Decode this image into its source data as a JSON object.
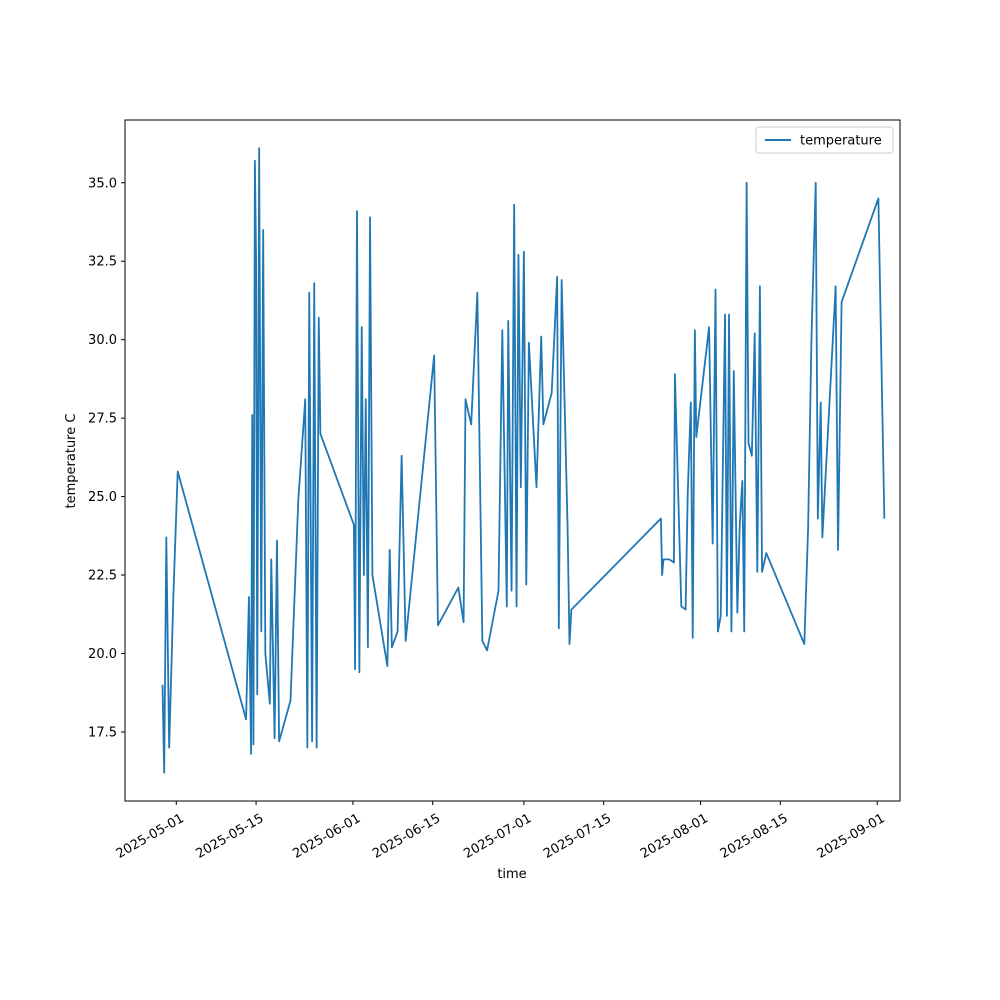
{
  "chart_data": {
    "type": "line",
    "xlabel": "time",
    "ylabel": "temperature C",
    "x_scale": "date",
    "xlim": [
      "2025-04-22",
      "2025-09-05"
    ],
    "ylim": [
      15.3,
      37.0
    ],
    "y_ticks": [
      17.5,
      20.0,
      22.5,
      25.0,
      27.5,
      30.0,
      32.5,
      35.0
    ],
    "y_tick_labels": [
      "17.5",
      "20.0",
      "22.5",
      "25.0",
      "27.5",
      "30.0",
      "32.5",
      "35.0"
    ],
    "x_ticks": [
      "2025-05-01",
      "2025-05-15",
      "2025-06-01",
      "2025-06-15",
      "2025-07-01",
      "2025-07-15",
      "2025-08-01",
      "2025-08-15",
      "2025-09-01"
    ],
    "grid": false,
    "legend": {
      "position": "top-right",
      "entries": [
        "temperature"
      ]
    },
    "series": [
      {
        "name": "temperature",
        "color": "#1f77b4",
        "points": [
          [
            "2025-04-28T14:00",
            19.0
          ],
          [
            "2025-04-28T21:00",
            16.2
          ],
          [
            "2025-04-29T06:00",
            23.7
          ],
          [
            "2025-04-29T18:00",
            17.0
          ],
          [
            "2025-04-30T12:00",
            21.9
          ],
          [
            "2025-05-01T06:00",
            25.8
          ],
          [
            "2025-05-13T06:00",
            17.9
          ],
          [
            "2025-05-13T18:00",
            21.8
          ],
          [
            "2025-05-14T03:00",
            16.8
          ],
          [
            "2025-05-14T08:00",
            27.6
          ],
          [
            "2025-05-14T13:00",
            17.1
          ],
          [
            "2025-05-14T19:00",
            35.7
          ],
          [
            "2025-05-15T00:00",
            32.6
          ],
          [
            "2025-05-15T05:00",
            18.7
          ],
          [
            "2025-05-15T13:00",
            36.1
          ],
          [
            "2025-05-15T22:00",
            20.7
          ],
          [
            "2025-05-16T06:00",
            33.5
          ],
          [
            "2025-05-16T15:00",
            20.0
          ],
          [
            "2025-05-17T10:00",
            18.4
          ],
          [
            "2025-05-17T16:00",
            23.0
          ],
          [
            "2025-05-18T06:00",
            17.3
          ],
          [
            "2025-05-18T16:00",
            23.6
          ],
          [
            "2025-05-19T01:00",
            17.2
          ],
          [
            "2025-05-21T01:00",
            18.5
          ],
          [
            "2025-05-22T10:00",
            24.9
          ],
          [
            "2025-05-23T15:00",
            28.1
          ],
          [
            "2025-05-24T00:00",
            17.0
          ],
          [
            "2025-05-24T08:00",
            31.5
          ],
          [
            "2025-05-24T20:00",
            17.2
          ],
          [
            "2025-05-25T05:00",
            31.8
          ],
          [
            "2025-05-25T15:00",
            17.0
          ],
          [
            "2025-05-26T00:00",
            30.7
          ],
          [
            "2025-05-26T07:00",
            27.0
          ],
          [
            "2025-06-01T04:00",
            24.1
          ],
          [
            "2025-06-01T09:00",
            19.5
          ],
          [
            "2025-06-01T17:00",
            34.1
          ],
          [
            "2025-06-02T03:00",
            19.4
          ],
          [
            "2025-06-02T13:00",
            30.4
          ],
          [
            "2025-06-02T22:00",
            22.5
          ],
          [
            "2025-06-03T06:00",
            28.1
          ],
          [
            "2025-06-03T15:00",
            20.2
          ],
          [
            "2025-06-04T00:00",
            33.9
          ],
          [
            "2025-06-04T10:00",
            22.5
          ],
          [
            "2025-06-07T01:00",
            19.6
          ],
          [
            "2025-06-07T11:00",
            23.3
          ],
          [
            "2025-06-07T20:00",
            20.2
          ],
          [
            "2025-06-08T20:00",
            20.7
          ],
          [
            "2025-06-09T13:00",
            26.3
          ],
          [
            "2025-06-10T06:00",
            20.4
          ],
          [
            "2025-06-15T06:00",
            29.5
          ],
          [
            "2025-06-15T22:00",
            20.9
          ],
          [
            "2025-06-19T12:00",
            22.1
          ],
          [
            "2025-06-20T10:00",
            21.0
          ],
          [
            "2025-06-20T18:00",
            28.1
          ],
          [
            "2025-06-21T18:00",
            27.3
          ],
          [
            "2025-06-22T20:00",
            31.5
          ],
          [
            "2025-06-23T17:00",
            20.4
          ],
          [
            "2025-06-24T13:00",
            20.1
          ],
          [
            "2025-06-26T13:00",
            22.0
          ],
          [
            "2025-06-27T05:00",
            30.3
          ],
          [
            "2025-06-28T00:00",
            21.5
          ],
          [
            "2025-06-28T06:00",
            30.6
          ],
          [
            "2025-06-28T20:00",
            22.0
          ],
          [
            "2025-06-29T07:00",
            34.3
          ],
          [
            "2025-06-29T17:00",
            21.5
          ],
          [
            "2025-06-30T01:00",
            32.7
          ],
          [
            "2025-06-30T11:00",
            25.3
          ],
          [
            "2025-07-01T00:00",
            32.8
          ],
          [
            "2025-07-01T10:00",
            22.2
          ],
          [
            "2025-07-01T21:00",
            29.9
          ],
          [
            "2025-07-03T05:00",
            25.3
          ],
          [
            "2025-07-04T01:00",
            30.1
          ],
          [
            "2025-07-04T10:00",
            27.3
          ],
          [
            "2025-07-05T21:00",
            28.3
          ],
          [
            "2025-07-06T20:00",
            32.0
          ],
          [
            "2025-07-07T03:00",
            20.8
          ],
          [
            "2025-07-07T15:00",
            31.9
          ],
          [
            "2025-07-08T16:00",
            24.0
          ],
          [
            "2025-07-09T00:00",
            20.3
          ],
          [
            "2025-07-09T08:00",
            21.4
          ],
          [
            "2025-07-25T01:00",
            24.3
          ],
          [
            "2025-07-25T06:00",
            22.5
          ],
          [
            "2025-07-25T12:00",
            23.0
          ],
          [
            "2025-07-26T12:00",
            23.0
          ],
          [
            "2025-07-27T08:00",
            22.9
          ],
          [
            "2025-07-27T12:00",
            28.9
          ],
          [
            "2025-07-28T15:00",
            21.5
          ],
          [
            "2025-07-29T09:00",
            21.4
          ],
          [
            "2025-07-29T18:00",
            25.1
          ],
          [
            "2025-07-30T07:00",
            28.0
          ],
          [
            "2025-07-30T15:00",
            20.5
          ],
          [
            "2025-07-31T00:00",
            30.3
          ],
          [
            "2025-07-31T06:00",
            26.9
          ],
          [
            "2025-08-02T12:00",
            30.4
          ],
          [
            "2025-08-03T03:00",
            23.5
          ],
          [
            "2025-08-03T15:00",
            31.6
          ],
          [
            "2025-08-04T01:00",
            20.7
          ],
          [
            "2025-08-04T13:00",
            21.2
          ],
          [
            "2025-08-05T07:00",
            30.8
          ],
          [
            "2025-08-05T15:00",
            21.2
          ],
          [
            "2025-08-06T00:00",
            30.8
          ],
          [
            "2025-08-06T10:00",
            20.7
          ],
          [
            "2025-08-06T20:00",
            29.0
          ],
          [
            "2025-08-07T11:00",
            21.3
          ],
          [
            "2025-08-07T21:00",
            24.1
          ],
          [
            "2025-08-08T08:00",
            25.5
          ],
          [
            "2025-08-08T16:00",
            20.7
          ],
          [
            "2025-08-09T02:00",
            35.0
          ],
          [
            "2025-08-09T10:00",
            26.7
          ],
          [
            "2025-08-10T00:00",
            26.3
          ],
          [
            "2025-08-10T12:00",
            30.2
          ],
          [
            "2025-08-10T23:00",
            22.6
          ],
          [
            "2025-08-11T10:00",
            31.7
          ],
          [
            "2025-08-11T19:00",
            22.6
          ],
          [
            "2025-08-12T13:00",
            23.2
          ],
          [
            "2025-08-19T05:00",
            20.3
          ],
          [
            "2025-08-19T21:00",
            24.0
          ],
          [
            "2025-08-20T11:00",
            30.0
          ],
          [
            "2025-08-21T05:00",
            35.0
          ],
          [
            "2025-08-21T14:00",
            24.3
          ],
          [
            "2025-08-22T02:00",
            28.0
          ],
          [
            "2025-08-22T09:00",
            23.7
          ],
          [
            "2025-08-24T17:00",
            31.7
          ],
          [
            "2025-08-25T03:00",
            23.3
          ],
          [
            "2025-08-25T18:00",
            31.2
          ],
          [
            "2025-09-01T05:00",
            34.5
          ],
          [
            "2025-09-02T06:00",
            24.3
          ]
        ]
      }
    ]
  }
}
